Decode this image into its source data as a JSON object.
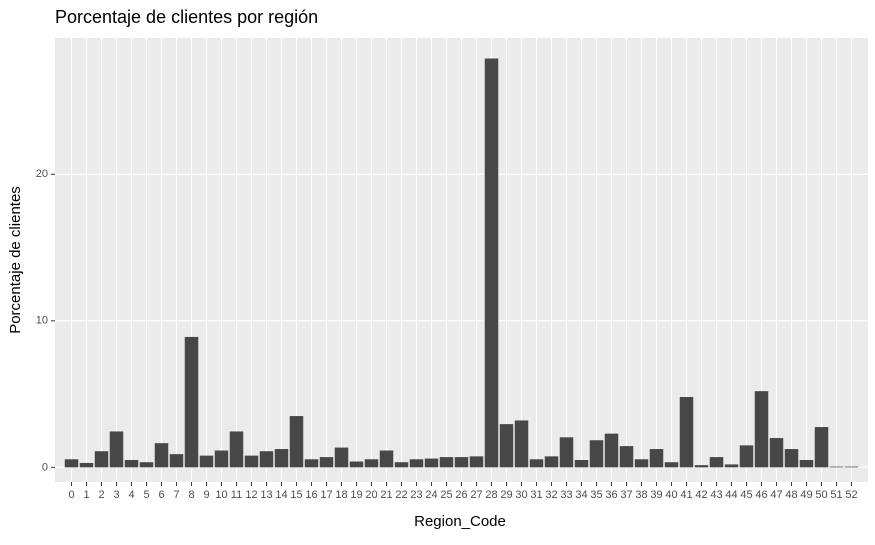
{
  "chart_data": {
    "type": "bar",
    "title": "Porcentaje de clientes por región",
    "x_label": "Region_Code",
    "y_label": "Porcentaje de clientes",
    "categories": [
      "0",
      "1",
      "2",
      "3",
      "4",
      "5",
      "6",
      "7",
      "8",
      "9",
      "10",
      "11",
      "12",
      "13",
      "14",
      "15",
      "16",
      "17",
      "18",
      "19",
      "20",
      "21",
      "22",
      "23",
      "24",
      "25",
      "26",
      "27",
      "28",
      "29",
      "30",
      "31",
      "32",
      "33",
      "34",
      "35",
      "36",
      "37",
      "38",
      "39",
      "40",
      "41",
      "42",
      "43",
      "44",
      "45",
      "46",
      "47",
      "48",
      "49",
      "50",
      "51",
      "52"
    ],
    "values": [
      0.55,
      0.3,
      1.1,
      2.45,
      0.5,
      0.35,
      1.65,
      0.9,
      8.9,
      0.8,
      1.15,
      2.45,
      0.8,
      1.1,
      1.25,
      3.5,
      0.55,
      0.7,
      1.35,
      0.4,
      0.55,
      1.15,
      0.35,
      0.55,
      0.6,
      0.7,
      0.7,
      0.75,
      27.9,
      2.95,
      3.2,
      0.55,
      0.75,
      2.05,
      0.5,
      1.85,
      2.3,
      1.45,
      0.55,
      1.25,
      0.35,
      4.8,
      0.15,
      0.7,
      0.2,
      1.5,
      5.2,
      2.0,
      1.25,
      0.5,
      2.75,
      0.05,
      0.05
    ],
    "color": "#474747",
    "ylim": [
      -1.0,
      29.3
    ],
    "yticks": [
      0,
      10,
      20
    ],
    "grid": true
  }
}
